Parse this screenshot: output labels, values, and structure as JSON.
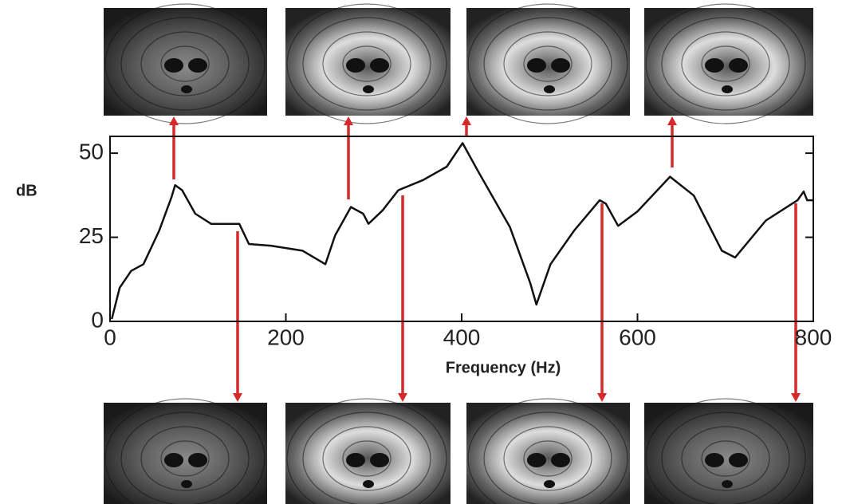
{
  "chart_data": {
    "type": "line",
    "x_label": "Frequency (Hz)",
    "y_label": "dB",
    "x": [
      2,
      11,
      24,
      38,
      56,
      70,
      74,
      82,
      97,
      115,
      147,
      158,
      183,
      219,
      245,
      256,
      274,
      288,
      294,
      310,
      328,
      356,
      383,
      401,
      419,
      455,
      478,
      485,
      501,
      528,
      557,
      564,
      578,
      600,
      637,
      664,
      696,
      711,
      746,
      782,
      789,
      793,
      800
    ],
    "series": [
      {
        "color": "#111111",
        "values": [
          0.7,
          10,
          15,
          17,
          27,
          37,
          40.5,
          39,
          32,
          29,
          29,
          23,
          22.5,
          21,
          17,
          25.5,
          34,
          32,
          29,
          33,
          39,
          42,
          46,
          53,
          44.5,
          28,
          11.4,
          5,
          17,
          27,
          36,
          35,
          28.4,
          32.7,
          43,
          37.4,
          21,
          19,
          30,
          36,
          38.6,
          36,
          36
        ]
      }
    ],
    "xlim": [
      0,
      800
    ],
    "xticks": [
      0,
      200,
      400,
      600,
      800
    ],
    "ylim": [
      0,
      55
    ],
    "yticks": [
      0,
      25,
      50
    ]
  }
}
